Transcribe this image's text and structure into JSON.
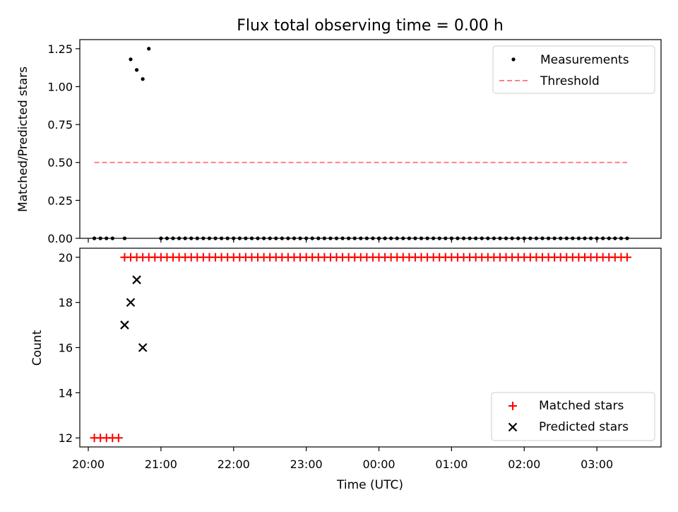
{
  "chart_data": {
    "title": "Flux total observing time = 0.00 h",
    "xlabel": "Time (UTC)",
    "x_axis": {
      "type": "time",
      "range": [
        "2024-01-01T19:53:00",
        "2024-01-02T03:53:00"
      ],
      "tick_labels": [
        "20:00",
        "21:00",
        "22:00",
        "23:00",
        "00:00",
        "01:00",
        "02:00",
        "03:00"
      ],
      "ticks": [
        "2024-01-01T20:00:00",
        "2024-01-01T21:00:00",
        "2024-01-01T22:00:00",
        "2024-01-01T23:00:00",
        "2024-01-02T00:00:00",
        "2024-01-02T01:00:00",
        "2024-01-02T02:00:00",
        "2024-01-02T03:00:00"
      ]
    },
    "panels": [
      {
        "type": "scatter",
        "ylabel": "Matched/Predicted stars",
        "ylim": [
          0,
          1.31
        ],
        "yticks": [
          0,
          0.25,
          0.5,
          0.75,
          1.0,
          1.25
        ],
        "ytick_labels": [
          "0.00",
          "0.25",
          "0.50",
          "0.75",
          "1.00",
          "1.25"
        ],
        "legend_position": "top-right",
        "series": [
          {
            "name": "Measurements",
            "marker": "dot",
            "color": "#000000",
            "start": "2024-01-01T20:05:00",
            "step_minutes": 5,
            "values": [
              0,
              0,
              0,
              0,
              0,
              0,
              1.18,
              1.11,
              1.05,
              1.25,
              0,
              0,
              0,
              0,
              0,
              0,
              0,
              0,
              0,
              0,
              0,
              0,
              0,
              0,
              0,
              0,
              0,
              0,
              0,
              0,
              0,
              0,
              0,
              0,
              0,
              0,
              0,
              0,
              0,
              0,
              0,
              0,
              0,
              0,
              0,
              0,
              0,
              0,
              0,
              0,
              0,
              0,
              0,
              0,
              0,
              0,
              0,
              0,
              0,
              0,
              0,
              0,
              0,
              0,
              0,
              0,
              0,
              0,
              0,
              0,
              0,
              0,
              0,
              0,
              0,
              0,
              0,
              0,
              0,
              0,
              0,
              0,
              0,
              0,
              0,
              0,
              0,
              0,
              0
            ],
            "skip_indices": [
              4,
              10
            ]
          },
          {
            "name": "Threshold",
            "style": "dashed-line",
            "color": "#ff8080",
            "x": [
              "2024-01-01T20:05:00",
              "2024-01-02T03:25:00"
            ],
            "y": [
              0.5,
              0.5
            ]
          }
        ]
      },
      {
        "type": "scatter",
        "ylabel": "Count",
        "ylim": [
          11.6,
          20.4
        ],
        "yticks": [
          12,
          14,
          16,
          18,
          20
        ],
        "ytick_labels": [
          "12",
          "14",
          "16",
          "18",
          "20"
        ],
        "legend_position": "bottom-right",
        "series": [
          {
            "name": "Matched stars",
            "marker": "plus",
            "color": "#ff0000",
            "points": [
              {
                "x": "2024-01-01T20:05:00",
                "y": 12
              },
              {
                "x": "2024-01-01T20:10:00",
                "y": 12
              },
              {
                "x": "2024-01-01T20:15:00",
                "y": 12
              },
              {
                "x": "2024-01-01T20:20:00",
                "y": 12
              },
              {
                "x": "2024-01-01T20:25:00",
                "y": 12
              }
            ],
            "range_value": 20,
            "range_start": "2024-01-01T20:30:00",
            "range_end": "2024-01-02T03:25:00",
            "range_step_minutes": 5
          },
          {
            "name": "Predicted stars",
            "marker": "x",
            "color": "#000000",
            "points": [
              {
                "x": "2024-01-01T20:30:00",
                "y": 17
              },
              {
                "x": "2024-01-01T20:35:00",
                "y": 18
              },
              {
                "x": "2024-01-01T20:40:00",
                "y": 19
              },
              {
                "x": "2024-01-01T20:45:00",
                "y": 16
              }
            ]
          }
        ]
      }
    ]
  }
}
